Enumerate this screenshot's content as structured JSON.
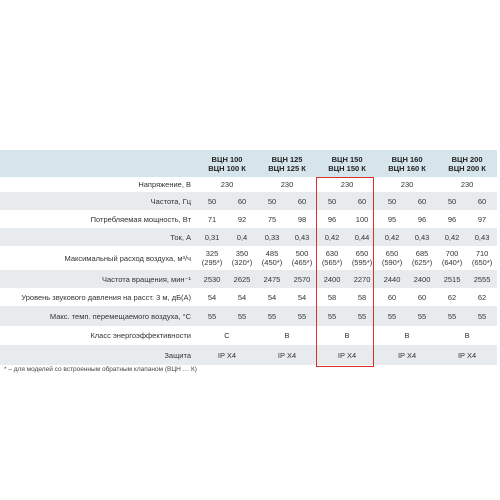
{
  "table": {
    "header": [
      "ВЦН 100\nВЦН 100 К",
      "ВЦН 125\nВЦН 125 К",
      "ВЦН 150\nВЦН 150 К",
      "ВЦН 160\nВЦН 160 К",
      "ВЦН 200\nВЦН 200 К"
    ],
    "rows": [
      {
        "label": "Напряжение, В",
        "cells": [
          "230",
          "230",
          "230",
          "230",
          "230"
        ]
      },
      {
        "label": "Частота, Гц",
        "cells": [
          "50",
          "60",
          "50",
          "60",
          "50",
          "60",
          "50",
          "60",
          "50",
          "60"
        ]
      },
      {
        "label": "Потребляемая мощность, Вт",
        "cells": [
          "71",
          "92",
          "75",
          "98",
          "96",
          "100",
          "95",
          "96",
          "96",
          "97"
        ]
      },
      {
        "label": "Ток, А",
        "cells": [
          "0,31",
          "0,4",
          "0,33",
          "0,43",
          "0,42",
          "0,44",
          "0,42",
          "0,43",
          "0,42",
          "0,43"
        ]
      },
      {
        "label": "Максимальный расход воздуха, м³/ч",
        "cells": [
          "325\n(295*)",
          "350\n(320*)",
          "485\n(450*)",
          "500\n(465*)",
          "630\n(565*)",
          "650\n(595*)",
          "650\n(590*)",
          "685\n(625*)",
          "700\n(640*)",
          "710\n(650*)"
        ]
      },
      {
        "label": "Частота вращения, мин⁻¹",
        "cells": [
          "2530",
          "2625",
          "2475",
          "2570",
          "2400",
          "2270",
          "2440",
          "2400",
          "2515",
          "2555"
        ]
      },
      {
        "label": "Уровень звукового давления на расст. 3 м, дБ(А)",
        "cells": [
          "54",
          "54",
          "54",
          "54",
          "58",
          "58",
          "60",
          "60",
          "62",
          "62"
        ]
      },
      {
        "label": "Макс. темп. перемещаемого воздуха, °С",
        "cells": [
          "55",
          "55",
          "55",
          "55",
          "55",
          "55",
          "55",
          "55",
          "55",
          "55"
        ]
      },
      {
        "label": "Класс энергоэффективности",
        "cells": [
          "C",
          "B",
          "B",
          "B",
          "B"
        ]
      },
      {
        "label": "Защита",
        "cells": [
          "IP X4",
          "IP X4",
          "IP X4",
          "IP X4",
          "IP X4"
        ]
      }
    ],
    "footnote": "* – для моделей со встроенным обратным клапаном (ВЦН … К)"
  }
}
